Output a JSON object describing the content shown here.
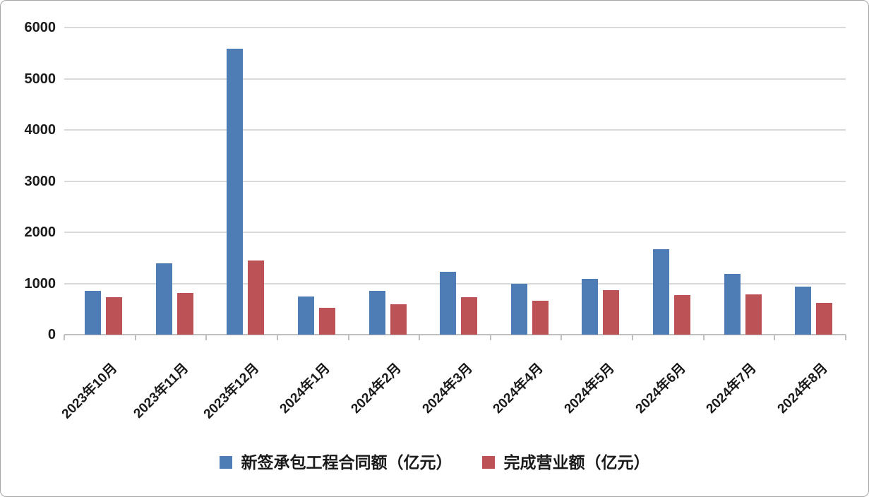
{
  "chart_data": {
    "type": "bar",
    "title": "",
    "categories": [
      "2023年10月",
      "2023年11月",
      "2023年12月",
      "2024年1月",
      "2024年2月",
      "2024年3月",
      "2024年4月",
      "2024年5月",
      "2024年6月",
      "2024年7月",
      "2024年8月"
    ],
    "series": [
      {
        "name": "新签承包工程合同额（亿元）",
        "color": "#4e7db5",
        "values": [
          850,
          1390,
          5590,
          750,
          860,
          1225,
          1000,
          1090,
          1675,
          1180,
          940
        ]
      },
      {
        "name": "完成营业额（亿元）",
        "color": "#bc5156",
        "values": [
          730,
          810,
          1450,
          530,
          590,
          730,
          665,
          870,
          775,
          780,
          620
        ]
      }
    ],
    "xlabel": "",
    "ylabel": "",
    "ylim": [
      0,
      6000
    ],
    "yticks": [
      0,
      1000,
      2000,
      3000,
      4000,
      5000,
      6000
    ],
    "grid": true,
    "legend_position": "bottom"
  },
  "colors": {
    "background": "#ffffff",
    "frame_border": "#a6a6a6",
    "gridline": "#d9d9d9",
    "axis": "#bfbfbf",
    "text": "#1a1a1a",
    "series_blue": "#4e7db5",
    "series_red": "#bc5156"
  }
}
